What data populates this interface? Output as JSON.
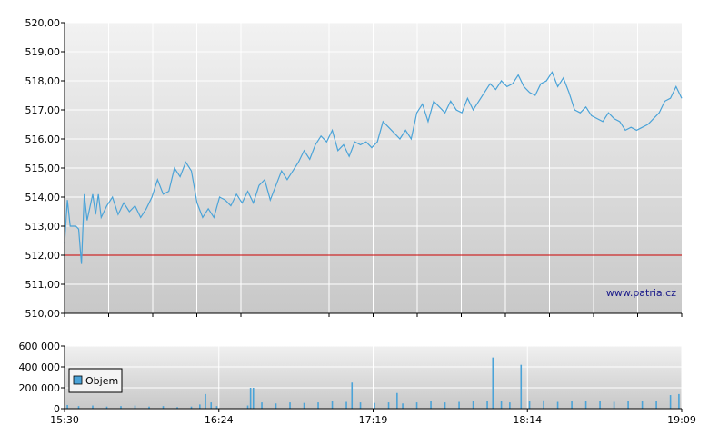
{
  "chart_data": [
    {
      "type": "line",
      "series": [
        {
          "points": [
            [
              "15:30",
              512.4
            ],
            [
              "15:31",
              513.9
            ],
            [
              "15:32",
              513.0
            ],
            [
              "15:34",
              513.0
            ],
            [
              "15:35",
              512.9
            ],
            [
              "15:36",
              511.7
            ],
            [
              "15:37",
              514.1
            ],
            [
              "15:38",
              513.2
            ],
            [
              "15:40",
              514.1
            ],
            [
              "15:41",
              513.4
            ],
            [
              "15:42",
              514.1
            ],
            [
              "15:43",
              513.3
            ],
            [
              "15:45",
              513.7
            ],
            [
              "15:47",
              514.0
            ],
            [
              "15:49",
              513.4
            ],
            [
              "15:51",
              513.8
            ],
            [
              "15:53",
              513.5
            ],
            [
              "15:55",
              513.7
            ],
            [
              "15:57",
              513.3
            ],
            [
              "15:59",
              513.6
            ],
            [
              "16:01",
              514.0
            ],
            [
              "16:03",
              514.6
            ],
            [
              "16:05",
              514.1
            ],
            [
              "16:07",
              514.2
            ],
            [
              "16:09",
              515.0
            ],
            [
              "16:11",
              514.7
            ],
            [
              "16:13",
              515.2
            ],
            [
              "16:15",
              514.9
            ],
            [
              "16:17",
              513.8
            ],
            [
              "16:19",
              513.3
            ],
            [
              "16:21",
              513.6
            ],
            [
              "16:23",
              513.3
            ],
            [
              "16:25",
              514.0
            ],
            [
              "16:27",
              513.9
            ],
            [
              "16:29",
              513.7
            ],
            [
              "16:31",
              514.1
            ],
            [
              "16:33",
              513.8
            ],
            [
              "16:35",
              514.2
            ],
            [
              "16:37",
              513.8
            ],
            [
              "16:39",
              514.4
            ],
            [
              "16:41",
              514.6
            ],
            [
              "16:43",
              513.9
            ],
            [
              "16:45",
              514.4
            ],
            [
              "16:47",
              514.9
            ],
            [
              "16:49",
              514.6
            ],
            [
              "16:51",
              514.9
            ],
            [
              "16:53",
              515.2
            ],
            [
              "16:55",
              515.6
            ],
            [
              "16:57",
              515.3
            ],
            [
              "16:59",
              515.8
            ],
            [
              "17:01",
              516.1
            ],
            [
              "17:03",
              515.9
            ],
            [
              "17:05",
              516.3
            ],
            [
              "17:07",
              515.6
            ],
            [
              "17:09",
              515.8
            ],
            [
              "17:11",
              515.4
            ],
            [
              "17:13",
              515.9
            ],
            [
              "17:15",
              515.8
            ],
            [
              "17:17",
              515.9
            ],
            [
              "17:19",
              515.7
            ],
            [
              "17:21",
              515.9
            ],
            [
              "17:23",
              516.6
            ],
            [
              "17:25",
              516.4
            ],
            [
              "17:27",
              516.2
            ],
            [
              "17:29",
              516.0
            ],
            [
              "17:31",
              516.3
            ],
            [
              "17:33",
              516.0
            ],
            [
              "17:35",
              516.9
            ],
            [
              "17:37",
              517.2
            ],
            [
              "17:39",
              516.6
            ],
            [
              "17:41",
              517.3
            ],
            [
              "17:43",
              517.1
            ],
            [
              "17:45",
              516.9
            ],
            [
              "17:47",
              517.3
            ],
            [
              "17:49",
              517.0
            ],
            [
              "17:51",
              516.9
            ],
            [
              "17:53",
              517.4
            ],
            [
              "17:55",
              517.0
            ],
            [
              "17:57",
              517.3
            ],
            [
              "17:59",
              517.6
            ],
            [
              "18:01",
              517.9
            ],
            [
              "18:03",
              517.7
            ],
            [
              "18:05",
              518.0
            ],
            [
              "18:07",
              517.8
            ],
            [
              "18:09",
              517.9
            ],
            [
              "18:11",
              518.2
            ],
            [
              "18:13",
              517.8
            ],
            [
              "18:15",
              517.6
            ],
            [
              "18:17",
              517.5
            ],
            [
              "18:19",
              517.9
            ],
            [
              "18:21",
              518.0
            ],
            [
              "18:23",
              518.3
            ],
            [
              "18:25",
              517.8
            ],
            [
              "18:27",
              518.1
            ],
            [
              "18:29",
              517.6
            ],
            [
              "18:31",
              517.0
            ],
            [
              "18:33",
              516.9
            ],
            [
              "18:35",
              517.1
            ],
            [
              "18:37",
              516.8
            ],
            [
              "18:39",
              516.7
            ],
            [
              "18:41",
              516.6
            ],
            [
              "18:43",
              516.9
            ],
            [
              "18:45",
              516.7
            ],
            [
              "18:47",
              516.6
            ],
            [
              "18:49",
              516.3
            ],
            [
              "18:51",
              516.4
            ],
            [
              "18:53",
              516.3
            ],
            [
              "18:55",
              516.4
            ],
            [
              "18:57",
              516.5
            ],
            [
              "18:59",
              516.7
            ],
            [
              "19:01",
              516.9
            ],
            [
              "19:03",
              517.3
            ],
            [
              "19:05",
              517.4
            ],
            [
              "19:07",
              517.8
            ],
            [
              "19:09",
              517.4
            ]
          ]
        }
      ],
      "reference_line": {
        "value": 512.0,
        "color": "#cc0000"
      },
      "ylim": [
        510,
        520
      ],
      "y_ticks": [
        "510,00",
        "511,00",
        "512,00",
        "513,00",
        "514,00",
        "515,00",
        "516,00",
        "517,00",
        "518,00",
        "519,00",
        "520,00"
      ],
      "xlim": [
        "15:30",
        "19:09"
      ],
      "grid": true,
      "line_color": "#4aa3d8",
      "watermark": "www.patria.cz"
    },
    {
      "type": "bar",
      "series": [
        {
          "name": "Objem",
          "points": [
            [
              "15:31",
              35000
            ],
            [
              "15:35",
              25000
            ],
            [
              "15:40",
              30000
            ],
            [
              "15:45",
              20000
            ],
            [
              "15:50",
              25000
            ],
            [
              "15:55",
              30000
            ],
            [
              "16:00",
              20000
            ],
            [
              "16:05",
              25000
            ],
            [
              "16:10",
              15000
            ],
            [
              "16:15",
              20000
            ],
            [
              "16:18",
              40000
            ],
            [
              "16:20",
              140000
            ],
            [
              "16:22",
              60000
            ],
            [
              "16:24",
              25000
            ],
            [
              "16:35",
              30000
            ],
            [
              "16:36",
              200000
            ],
            [
              "16:37",
              200000
            ],
            [
              "16:40",
              60000
            ],
            [
              "16:45",
              50000
            ],
            [
              "16:50",
              60000
            ],
            [
              "16:55",
              55000
            ],
            [
              "17:00",
              60000
            ],
            [
              "17:05",
              70000
            ],
            [
              "17:10",
              65000
            ],
            [
              "17:12",
              250000
            ],
            [
              "17:15",
              60000
            ],
            [
              "17:20",
              55000
            ],
            [
              "17:25",
              60000
            ],
            [
              "17:28",
              150000
            ],
            [
              "17:30",
              50000
            ],
            [
              "17:35",
              60000
            ],
            [
              "17:40",
              70000
            ],
            [
              "17:45",
              60000
            ],
            [
              "17:50",
              65000
            ],
            [
              "17:55",
              70000
            ],
            [
              "18:00",
              75000
            ],
            [
              "18:02",
              490000
            ],
            [
              "18:05",
              70000
            ],
            [
              "18:08",
              60000
            ],
            [
              "18:12",
              420000
            ],
            [
              "18:15",
              70000
            ],
            [
              "18:20",
              80000
            ],
            [
              "18:25",
              65000
            ],
            [
              "18:30",
              70000
            ],
            [
              "18:35",
              75000
            ],
            [
              "18:40",
              70000
            ],
            [
              "18:45",
              65000
            ],
            [
              "18:50",
              70000
            ],
            [
              "18:55",
              75000
            ],
            [
              "19:00",
              70000
            ],
            [
              "19:05",
              130000
            ],
            [
              "19:08",
              140000
            ]
          ]
        }
      ],
      "ylim": [
        0,
        600000
      ],
      "y_ticks": [
        "0",
        "200 000",
        "400 000",
        "600 000"
      ],
      "x_ticks": [
        "15:30",
        "16:24",
        "17:19",
        "18:14",
        "19:09"
      ],
      "bar_color": "#4aa3d8",
      "legend": {
        "label": "Objem",
        "placement": "top-left"
      }
    }
  ]
}
